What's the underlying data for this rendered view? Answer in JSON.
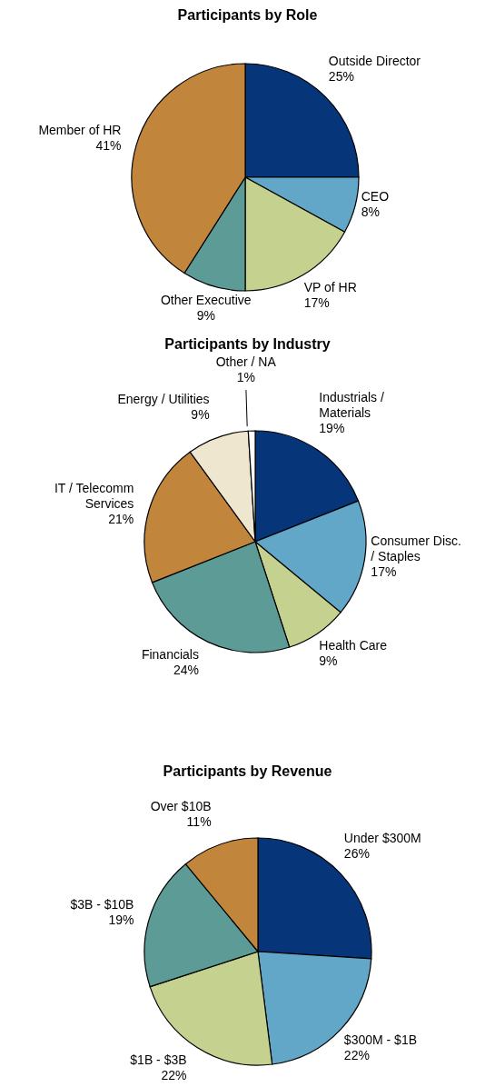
{
  "chart_data": [
    {
      "type": "pie",
      "title": "Participants by Role",
      "categories": [
        "Outside Director",
        "CEO",
        "VP of HR",
        "Other Executive",
        "Member of HR"
      ],
      "values": [
        25,
        8,
        17,
        9,
        41
      ],
      "colors": [
        "#06357a",
        "#62a7c8",
        "#c4d18f",
        "#5d9b97",
        "#c2853c"
      ],
      "value_labels": [
        "25%",
        "8%",
        "17%",
        "9%",
        "41%"
      ]
    },
    {
      "type": "pie",
      "title": "Participants by Industry",
      "categories": [
        "Industrials / Materials",
        "Consumer Disc. / Staples",
        "Health Care",
        "Financials",
        "IT / Telecomm Services",
        "Energy / Utilities",
        "Other / NA"
      ],
      "values": [
        19,
        17,
        9,
        24,
        21,
        9,
        1
      ],
      "colors": [
        "#06357a",
        "#62a7c8",
        "#c4d18f",
        "#5d9b97",
        "#c2853c",
        "#efe6d0",
        "#ffffff"
      ],
      "value_labels": [
        "19%",
        "17%",
        "9%",
        "24%",
        "21%",
        "9%",
        "1%"
      ]
    },
    {
      "type": "pie",
      "title": "Participants by Revenue",
      "categories": [
        "Under $300M",
        "$300M - $1B",
        "$1B - $3B",
        "$3B - $10B",
        "Over $10B"
      ],
      "values": [
        26,
        22,
        22,
        19,
        11
      ],
      "colors": [
        "#06357a",
        "#62a7c8",
        "#c4d18f",
        "#5d9b97",
        "#c2853c"
      ],
      "value_labels": [
        "26%",
        "22%",
        "22%",
        "19%",
        "11%"
      ]
    }
  ]
}
